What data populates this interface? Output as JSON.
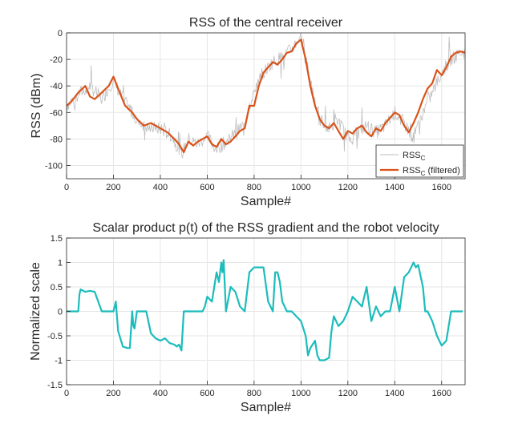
{
  "chart_data": [
    {
      "type": "line",
      "title": "RSS of the central receiver",
      "xlabel": "Sample#",
      "ylabel": "RSS (dBm)",
      "xlim": [
        0,
        1700
      ],
      "ylim": [
        -110,
        0
      ],
      "xticks": [
        0,
        200,
        400,
        600,
        800,
        1000,
        1200,
        1400,
        1600
      ],
      "yticks": [
        0,
        -20,
        -40,
        -60,
        -80,
        -100
      ],
      "grid": true,
      "legend_position": "bottom-right",
      "series": [
        {
          "name": "RSS_C",
          "legend_base": "RSS",
          "legend_sub": "C",
          "legend_suffix": "",
          "color": "#bdbdbd",
          "noisy": true,
          "x": [
            0,
            50,
            100,
            150,
            200,
            240,
            300,
            350,
            400,
            450,
            490,
            520,
            560,
            600,
            640,
            680,
            720,
            760,
            800,
            840,
            880,
            920,
            960,
            1000,
            1040,
            1080,
            1120,
            1160,
            1200,
            1240,
            1280,
            1320,
            1360,
            1400,
            1440,
            1480,
            1520,
            1560,
            1600,
            1640,
            1680,
            1700
          ],
          "y": [
            -55,
            -46,
            -40,
            -50,
            -36,
            -50,
            -65,
            -72,
            -72,
            -78,
            -92,
            -80,
            -84,
            -78,
            -88,
            -82,
            -76,
            -68,
            -42,
            -30,
            -22,
            -18,
            -12,
            -2,
            -36,
            -65,
            -72,
            -66,
            -80,
            -75,
            -70,
            -75,
            -70,
            -60,
            -68,
            -80,
            -60,
            -45,
            -30,
            -20,
            -15,
            -14
          ]
        },
        {
          "name": "RSS_C (filtered)",
          "legend_base": "RSS",
          "legend_sub": "C",
          "legend_suffix": " (filtered)",
          "color": "#d95319",
          "noisy": false,
          "x": [
            0,
            20,
            50,
            80,
            100,
            120,
            150,
            180,
            200,
            220,
            250,
            280,
            300,
            330,
            360,
            400,
            430,
            460,
            480,
            500,
            520,
            540,
            560,
            580,
            600,
            620,
            640,
            660,
            680,
            700,
            720,
            740,
            760,
            780,
            800,
            820,
            840,
            860,
            880,
            900,
            920,
            940,
            960,
            980,
            1000,
            1020,
            1040,
            1060,
            1080,
            1100,
            1120,
            1140,
            1160,
            1180,
            1200,
            1220,
            1240,
            1260,
            1280,
            1300,
            1320,
            1340,
            1360,
            1380,
            1400,
            1420,
            1440,
            1460,
            1480,
            1500,
            1520,
            1540,
            1560,
            1580,
            1600,
            1620,
            1640,
            1660,
            1680,
            1700
          ],
          "y": [
            -55,
            -52,
            -45,
            -40,
            -48,
            -50,
            -45,
            -40,
            -33,
            -42,
            -55,
            -60,
            -65,
            -70,
            -68,
            -72,
            -75,
            -80,
            -84,
            -90,
            -82,
            -85,
            -82,
            -80,
            -78,
            -84,
            -86,
            -80,
            -84,
            -82,
            -78,
            -74,
            -72,
            -55,
            -55,
            -40,
            -30,
            -26,
            -22,
            -24,
            -20,
            -15,
            -14,
            -8,
            -5,
            -20,
            -40,
            -55,
            -65,
            -70,
            -72,
            -68,
            -74,
            -80,
            -74,
            -76,
            -72,
            -70,
            -75,
            -78,
            -72,
            -74,
            -68,
            -64,
            -60,
            -62,
            -70,
            -75,
            -68,
            -60,
            -50,
            -42,
            -38,
            -28,
            -32,
            -26,
            -18,
            -15,
            -14,
            -15
          ]
        }
      ]
    },
    {
      "type": "line",
      "title": "Scalar product p(t) of the RSS gradient and the robot velocity",
      "xlabel": "Sample#",
      "ylabel": "Normalized scale",
      "xlim": [
        0,
        1700
      ],
      "ylim": [
        -1.5,
        1.5
      ],
      "xticks": [
        0,
        200,
        400,
        600,
        800,
        1000,
        1200,
        1400,
        1600
      ],
      "yticks": [
        1.5,
        1,
        0.5,
        0,
        -0.5,
        -1,
        -1.5
      ],
      "grid": true,
      "series": [
        {
          "name": "",
          "color": "#1cbcbc",
          "noisy": false,
          "x": [
            0,
            50,
            55,
            60,
            80,
            100,
            120,
            150,
            155,
            180,
            200,
            210,
            220,
            240,
            260,
            270,
            280,
            285,
            290,
            300,
            320,
            340,
            360,
            380,
            400,
            420,
            440,
            460,
            470,
            480,
            490,
            500,
            520,
            540,
            560,
            580,
            590,
            600,
            620,
            640,
            650,
            660,
            665,
            670,
            680,
            700,
            720,
            740,
            760,
            780,
            790,
            800,
            820,
            840,
            860,
            880,
            890,
            900,
            910,
            920,
            930,
            940,
            960,
            980,
            1000,
            1020,
            1030,
            1040,
            1060,
            1070,
            1080,
            1100,
            1120,
            1130,
            1140,
            1150,
            1160,
            1180,
            1200,
            1220,
            1240,
            1260,
            1280,
            1300,
            1320,
            1340,
            1360,
            1380,
            1400,
            1420,
            1440,
            1460,
            1480,
            1490,
            1500,
            1520,
            1530,
            1540,
            1560,
            1580,
            1600,
            1620,
            1640,
            1660,
            1680,
            1690
          ],
          "y": [
            0,
            0,
            0.35,
            0.45,
            0.4,
            0.42,
            0.4,
            0.0,
            0.0,
            0.0,
            0.0,
            0.2,
            -0.4,
            -0.72,
            -0.75,
            -0.75,
            0.0,
            -0.3,
            -0.35,
            0.0,
            0.0,
            0.0,
            -0.45,
            -0.55,
            -0.6,
            -0.55,
            -0.65,
            -0.68,
            -0.72,
            -0.68,
            -0.8,
            0.0,
            0.0,
            0.0,
            0.0,
            0.0,
            0.1,
            0.3,
            0.2,
            0.8,
            0.6,
            1.0,
            0.8,
            1.05,
            0.0,
            0.5,
            0.4,
            0.1,
            0.0,
            0.8,
            0.85,
            0.9,
            0.9,
            0.9,
            0.2,
            0.0,
            0.8,
            0.8,
            0.6,
            0.2,
            0.1,
            0.0,
            0.0,
            -0.1,
            -0.2,
            -0.5,
            -0.9,
            -0.75,
            -0.6,
            -0.9,
            -1.0,
            -1.0,
            -0.95,
            -0.4,
            -0.1,
            -0.2,
            -0.3,
            -0.2,
            0.0,
            0.3,
            0.2,
            0.1,
            0.5,
            -0.2,
            0.1,
            -0.1,
            0.0,
            0.0,
            0.5,
            0.0,
            0.7,
            0.8,
            1.0,
            0.9,
            0.95,
            0.5,
            0.0,
            0.0,
            -0.2,
            -0.5,
            -0.7,
            -0.6,
            0.0,
            0.0,
            0.0,
            0.0
          ]
        }
      ]
    }
  ]
}
